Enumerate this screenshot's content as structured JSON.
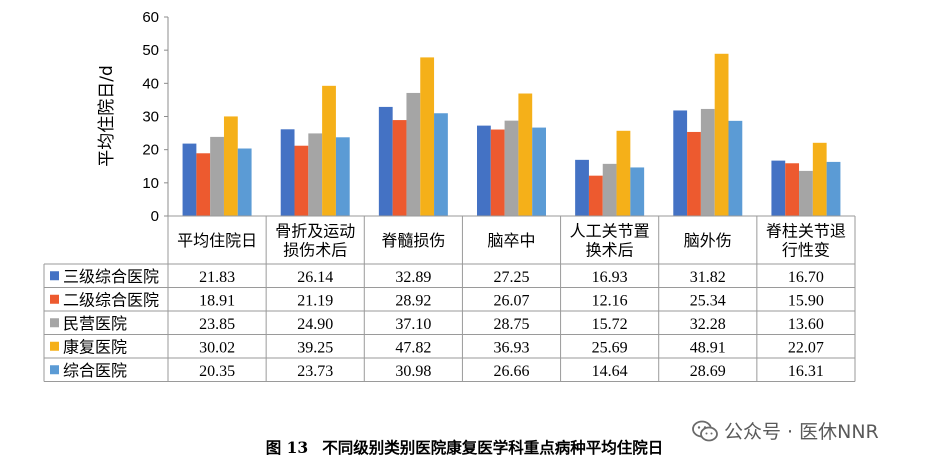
{
  "chart_data": {
    "type": "bar",
    "ylabel": "平均住院日/d",
    "ylim": [
      0,
      60
    ],
    "yticks": [
      0,
      10,
      20,
      30,
      40,
      50,
      60
    ],
    "grid": false,
    "legend": "table-rows-left",
    "categories": [
      "平均住院日",
      "骨折及运动\n损伤术后",
      "脊髓损伤",
      "脑卒中",
      "人工关节置\n换术后",
      "脑外伤",
      "脊柱关节退\n行性变"
    ],
    "series": [
      {
        "name": "三级综合医院",
        "color": "#4472c4",
        "values": [
          21.83,
          26.14,
          32.89,
          27.25,
          16.93,
          31.82,
          16.7
        ]
      },
      {
        "name": "二级综合医院",
        "color": "#ed5a2f",
        "values": [
          18.91,
          21.19,
          28.92,
          26.07,
          12.16,
          25.34,
          15.9
        ]
      },
      {
        "name": "民营医院",
        "color": "#a5a5a5",
        "values": [
          23.85,
          24.9,
          37.1,
          28.75,
          15.72,
          32.28,
          13.6
        ]
      },
      {
        "name": "康复医院",
        "color": "#f5b019",
        "values": [
          30.02,
          39.25,
          47.82,
          36.93,
          25.69,
          48.91,
          22.07
        ]
      },
      {
        "name": "综合医院",
        "color": "#5b9bd5",
        "values": [
          20.35,
          23.73,
          30.98,
          26.66,
          14.64,
          28.69,
          16.31
        ]
      }
    ],
    "value_labels": [
      [
        "21.83",
        "26.14",
        "32.89",
        "27.25",
        "16.93",
        "31.82",
        "16.70"
      ],
      [
        "18.91",
        "21.19",
        "28.92",
        "26.07",
        "12.16",
        "25.34",
        "15.90"
      ],
      [
        "23.85",
        "24.90",
        "37.10",
        "28.75",
        "15.72",
        "32.28",
        "13.60"
      ],
      [
        "30.02",
        "39.25",
        "47.82",
        "36.93",
        "25.69",
        "48.91",
        "22.07"
      ],
      [
        "20.35",
        "23.73",
        "30.98",
        "26.66",
        "14.64",
        "28.69",
        "16.31"
      ]
    ]
  },
  "caption": {
    "number": "图 13",
    "text": "不同级别类别医院康复医学科重点病种平均住院日"
  },
  "watermark": {
    "text": "公众号 · 医休NNR"
  }
}
